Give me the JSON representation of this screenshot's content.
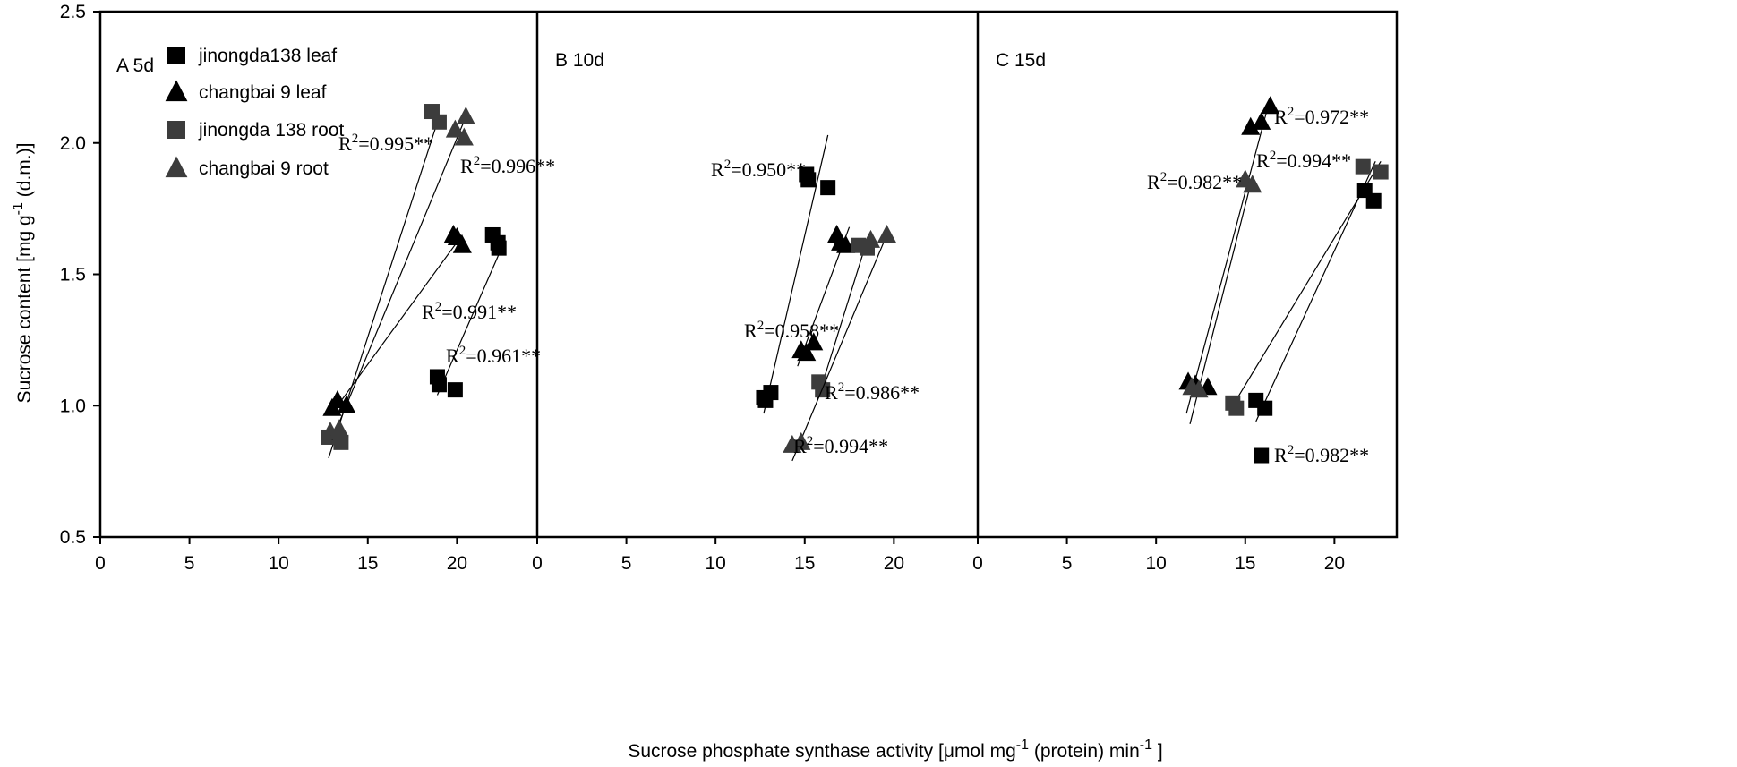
{
  "chart_data": {
    "type": "scatter",
    "ylabel": "Sucrose content [mg g-1 (d.m.)]",
    "xlabel": "Sucrose phosphate synthase activity [μmol mg-1 (protein) min-1]",
    "ylim": [
      0.5,
      2.5
    ],
    "y_ticks": [
      "0.5",
      "1.0",
      "1.5",
      "2.0",
      "2.5"
    ],
    "xlim": [
      0,
      24.5
    ],
    "x_ticks": [
      "0",
      "5",
      "10",
      "15",
      "20"
    ],
    "legend": [
      {
        "label": "jinongda138 leaf",
        "marker": "square",
        "color": "#000000"
      },
      {
        "label": "changbai 9 leaf",
        "marker": "triangle",
        "color": "#000000"
      },
      {
        "label": "jinongda 138 root",
        "marker": "square",
        "color": "#3c3c3c"
      },
      {
        "label": "changbai 9 root",
        "marker": "triangle",
        "color": "#3c3c3c"
      }
    ],
    "panels": [
      {
        "label": "A  5d",
        "series": [
          {
            "name": "jinongda138 leaf",
            "marker": "square",
            "color": "#000000",
            "points": [
              [
                18.9,
                1.11
              ],
              [
                19.0,
                1.08
              ],
              [
                19.9,
                1.06
              ],
              [
                22.0,
                1.65
              ],
              [
                22.3,
                1.62
              ],
              [
                22.35,
                1.6
              ]
            ],
            "fit": [
              [
                18.9,
                1.04
              ],
              [
                22.5,
                1.6
              ]
            ],
            "r2": "0.961**"
          },
          {
            "name": "changbai 9 leaf",
            "marker": "triangle",
            "color": "#000000",
            "points": [
              [
                13.0,
                0.99
              ],
              [
                13.3,
                1.02
              ],
              [
                13.8,
                1.0
              ],
              [
                19.8,
                1.65
              ],
              [
                20.0,
                1.64
              ],
              [
                20.3,
                1.61
              ]
            ],
            "fit": [
              [
                13.2,
                0.99
              ],
              [
                20.3,
                1.65
              ]
            ],
            "r2": "0.991**"
          },
          {
            "name": "jinongda 138 root",
            "marker": "square",
            "color": "#3c3c3c",
            "points": [
              [
                12.8,
                0.88
              ],
              [
                13.5,
                0.86
              ],
              [
                18.6,
                2.12
              ],
              [
                19.0,
                2.08
              ]
            ],
            "fit": [
              [
                12.8,
                0.8
              ],
              [
                19.0,
                2.1
              ]
            ],
            "r2": "0.995**"
          },
          {
            "name": "changbai 9 root",
            "marker": "triangle",
            "color": "#3c3c3c",
            "points": [
              [
                12.9,
                0.9
              ],
              [
                13.4,
                0.91
              ],
              [
                19.9,
                2.05
              ],
              [
                20.4,
                2.02
              ],
              [
                20.5,
                2.1
              ]
            ],
            "fit": [
              [
                13.0,
                0.87
              ],
              [
                20.5,
                2.1
              ]
            ],
            "r2": "0.996**"
          }
        ]
      },
      {
        "label": "B 10d",
        "series": [
          {
            "name": "jinongda138 leaf",
            "marker": "square",
            "color": "#000000",
            "points": [
              [
                12.7,
                1.03
              ],
              [
                12.8,
                1.02
              ],
              [
                13.1,
                1.05
              ],
              [
                15.1,
                1.88
              ],
              [
                15.2,
                1.86
              ],
              [
                16.3,
                1.83
              ]
            ],
            "fit": [
              [
                12.7,
                0.97
              ],
              [
                16.3,
                2.03
              ]
            ],
            "r2": "0.950**"
          },
          {
            "name": "changbai 9 leaf",
            "marker": "triangle",
            "color": "#000000",
            "points": [
              [
                14.8,
                1.21
              ],
              [
                15.1,
                1.2
              ],
              [
                15.5,
                1.24
              ],
              [
                16.8,
                1.65
              ],
              [
                17.0,
                1.62
              ],
              [
                17.3,
                1.61
              ]
            ],
            "fit": [
              [
                14.6,
                1.15
              ],
              [
                17.5,
                1.68
              ]
            ],
            "r2": "0.958**"
          },
          {
            "name": "jinongda 138 root",
            "marker": "square",
            "color": "#3c3c3c",
            "points": [
              [
                15.8,
                1.09
              ],
              [
                16.0,
                1.06
              ],
              [
                18.0,
                1.61
              ],
              [
                18.5,
                1.6
              ]
            ],
            "fit": [
              [
                15.7,
                1.02
              ],
              [
                18.5,
                1.63
              ]
            ],
            "r2": "0.986**"
          },
          {
            "name": "changbai 9 root",
            "marker": "triangle",
            "color": "#3c3c3c",
            "points": [
              [
                14.3,
                0.85
              ],
              [
                14.8,
                0.86
              ],
              [
                18.7,
                1.63
              ],
              [
                19.6,
                1.65
              ]
            ],
            "fit": [
              [
                14.3,
                0.79
              ],
              [
                19.6,
                1.65
              ]
            ],
            "r2": "0.994**"
          }
        ]
      },
      {
        "label": "C 15d",
        "series": [
          {
            "name": "jinongda138 leaf",
            "marker": "square",
            "color": "#000000",
            "points": [
              [
                15.6,
                1.02
              ],
              [
                16.1,
                0.99
              ],
              [
                15.9,
                0.81
              ],
              [
                21.7,
                1.82
              ],
              [
                22.2,
                1.78
              ]
            ],
            "fit": [
              [
                15.6,
                0.94
              ],
              [
                22.3,
                1.93
              ]
            ],
            "r2": "0.982**"
          },
          {
            "name": "changbai 9 leaf",
            "marker": "triangle",
            "color": "#000000",
            "points": [
              [
                11.8,
                1.09
              ],
              [
                12.2,
                1.08
              ],
              [
                12.9,
                1.07
              ],
              [
                15.3,
                2.06
              ],
              [
                15.9,
                2.08
              ],
              [
                16.4,
                2.14
              ]
            ],
            "fit": [
              [
                11.7,
                0.97
              ],
              [
                16.2,
                2.12
              ]
            ],
            "r2": "0.972**"
          },
          {
            "name": "jinongda 138 root",
            "marker": "square",
            "color": "#3c3c3c",
            "points": [
              [
                14.3,
                1.01
              ],
              [
                14.5,
                0.99
              ],
              [
                21.6,
                1.91
              ],
              [
                22.6,
                1.89
              ]
            ],
            "fit": [
              [
                14.3,
                1.0
              ],
              [
                22.6,
                1.93
              ]
            ],
            "r2": "0.994**"
          },
          {
            "name": "changbai 9 root",
            "marker": "triangle",
            "color": "#3c3c3c",
            "points": [
              [
                12.0,
                1.07
              ],
              [
                12.4,
                1.06
              ],
              [
                15.0,
                1.86
              ],
              [
                15.4,
                1.84
              ]
            ],
            "fit": [
              [
                11.9,
                0.93
              ],
              [
                15.4,
                1.87
              ]
            ],
            "r2": "0.982**"
          }
        ]
      }
    ]
  }
}
